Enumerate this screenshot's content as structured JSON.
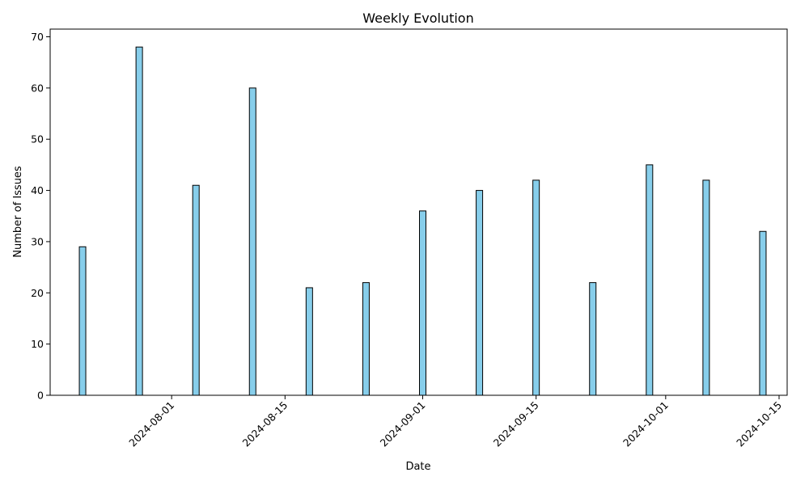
{
  "chart_data": {
    "type": "bar",
    "title": "Weekly Evolution",
    "xlabel": "Date",
    "ylabel": "Number of Issues",
    "x": [
      "2024-07-21",
      "2024-07-28",
      "2024-08-04",
      "2024-08-11",
      "2024-08-18",
      "2024-08-25",
      "2024-09-01",
      "2024-09-08",
      "2024-09-15",
      "2024-09-22",
      "2024-09-29",
      "2024-10-06",
      "2024-10-13"
    ],
    "values": [
      29,
      68,
      41,
      60,
      21,
      22,
      36,
      40,
      42,
      22,
      45,
      42,
      32
    ],
    "xlim": [
      "2024-07-17",
      "2024-10-16"
    ],
    "ylim": [
      0,
      71.5
    ],
    "x_ticks": [
      "2024-08-01",
      "2024-08-15",
      "2024-09-01",
      "2024-09-15",
      "2024-10-01",
      "2024-10-15"
    ],
    "y_ticks": [
      0,
      10,
      20,
      30,
      40,
      50,
      60,
      70
    ],
    "grid": false,
    "bar_color": "#87ceeb",
    "edge_color": "#000000"
  }
}
